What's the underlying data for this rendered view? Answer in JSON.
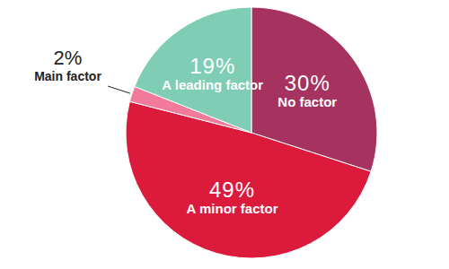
{
  "chart_data": {
    "type": "pie",
    "categories": [
      "No factor",
      "A minor factor",
      "Main factor",
      "A leading factor"
    ],
    "values": [
      30,
      49,
      2,
      19
    ],
    "value_labels": [
      "30%",
      "49%",
      "2%",
      "19%"
    ],
    "colors": [
      "#a6325f",
      "#dc1a3c",
      "#f27a9b",
      "#7ecdb4"
    ],
    "data_labels": true
  }
}
